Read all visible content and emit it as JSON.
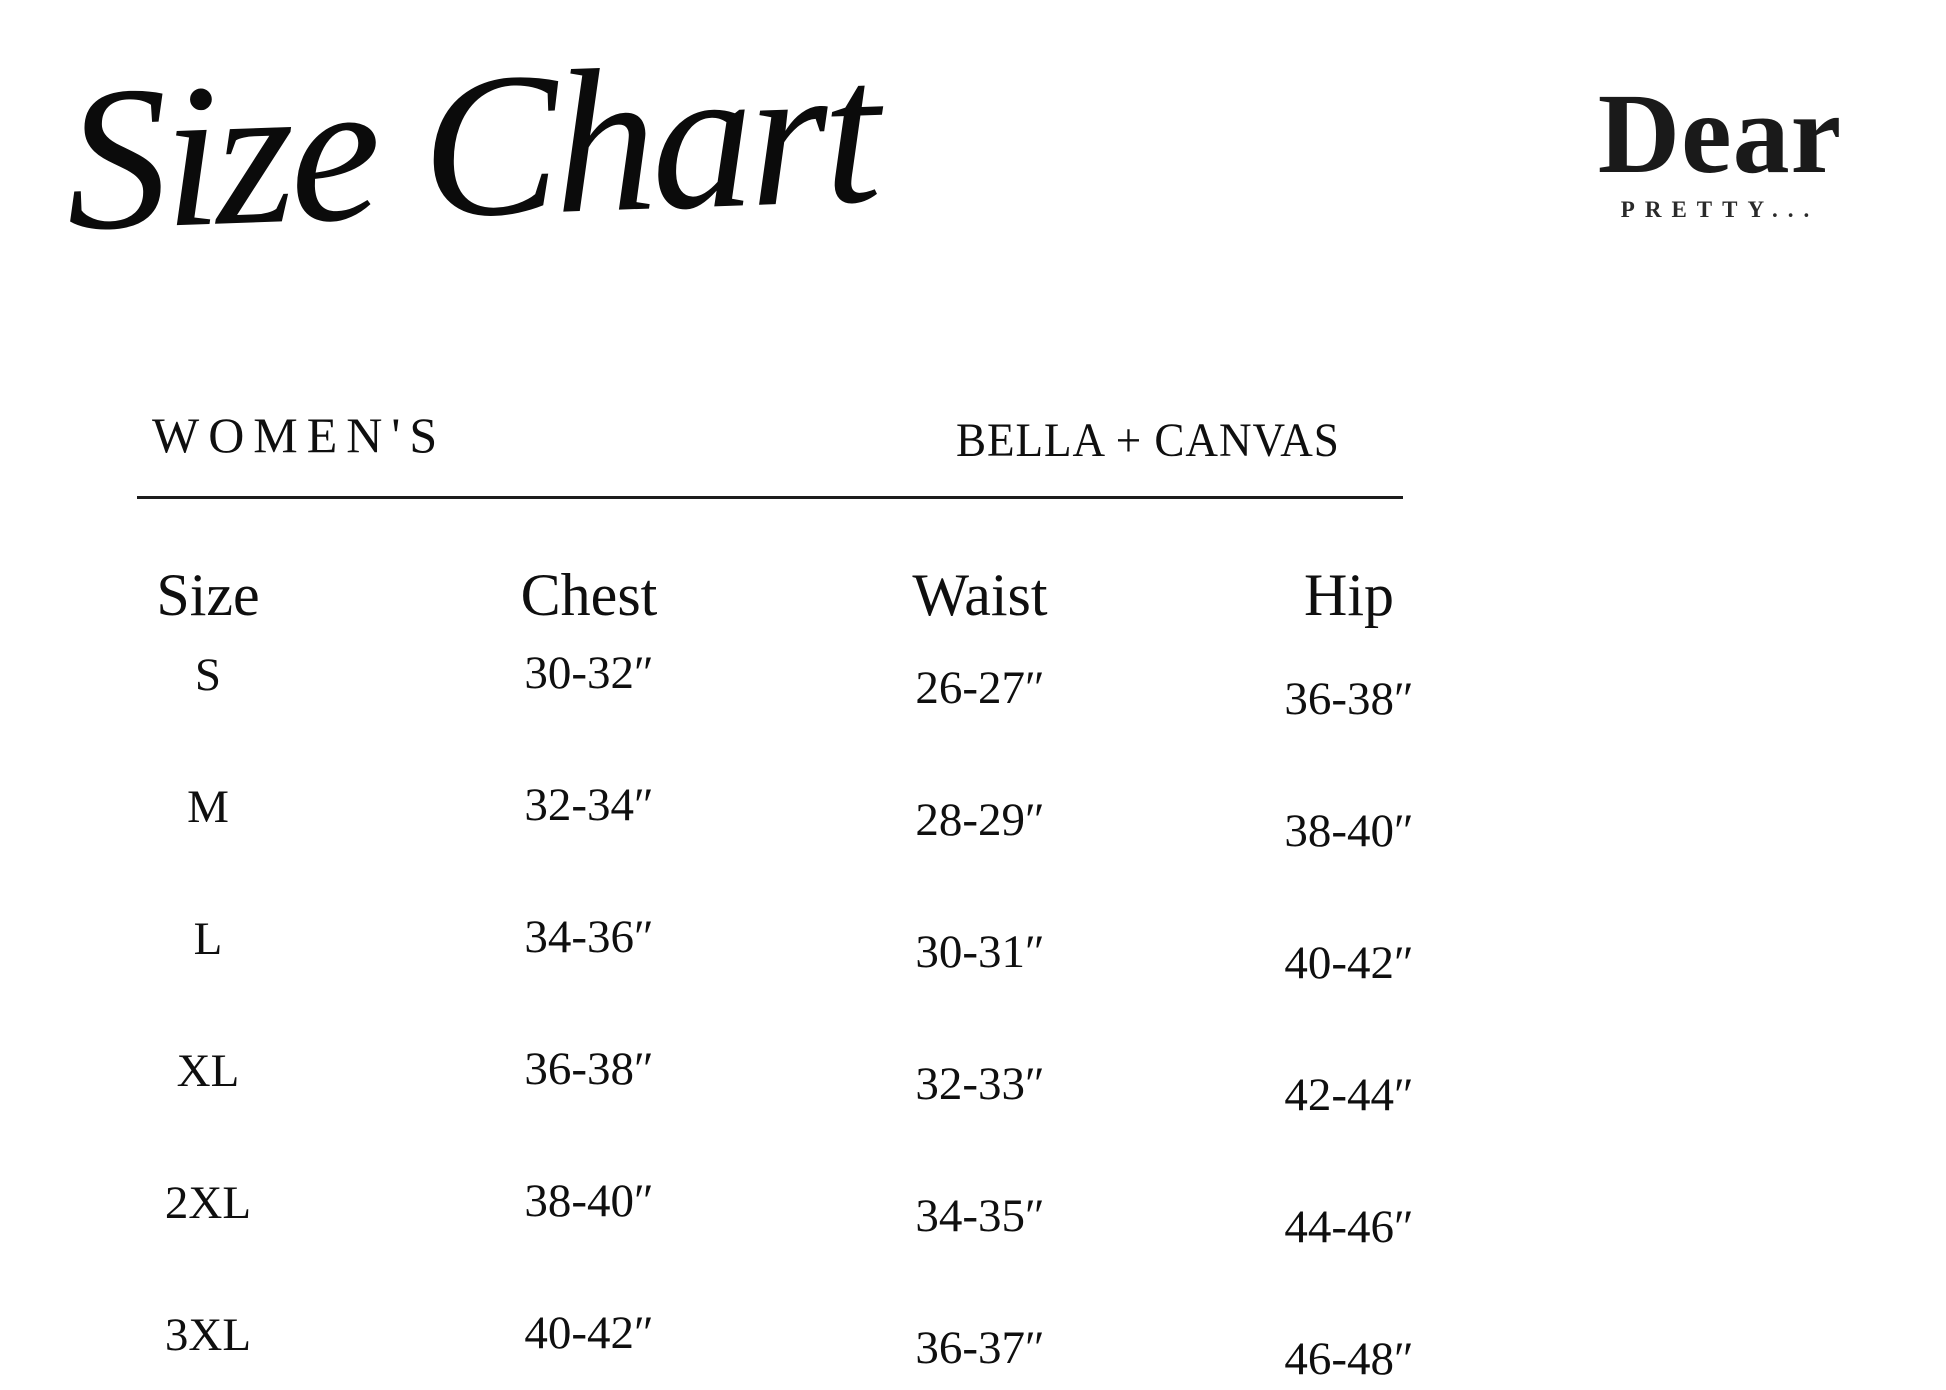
{
  "logo": {
    "name": "Dear",
    "tagline": "PRETTY..."
  },
  "colors": {
    "text": "#0f0f0f",
    "background": "#ffffff",
    "rule": "#1c1c1c"
  },
  "chart_data": {
    "type": "table",
    "title": "Size Chart",
    "category_label": "WOMEN'S",
    "brand_label": "BELLA + CANVAS",
    "columns": [
      "Size",
      "Chest",
      "Waist",
      "Hip"
    ],
    "rows": [
      [
        "S",
        "30-32″",
        "26-27″",
        "36-38″"
      ],
      [
        "M",
        "32-34″",
        "28-29″",
        "38-40″"
      ],
      [
        "L",
        "34-36″",
        "30-31″",
        "40-42″"
      ],
      [
        "XL",
        "36-38″",
        "32-33″",
        "42-44″"
      ],
      [
        "2XL",
        "38-40″",
        "34-35″",
        "44-46″"
      ],
      [
        "3XL",
        "40-42″",
        "36-37″",
        "46-48″"
      ]
    ]
  }
}
